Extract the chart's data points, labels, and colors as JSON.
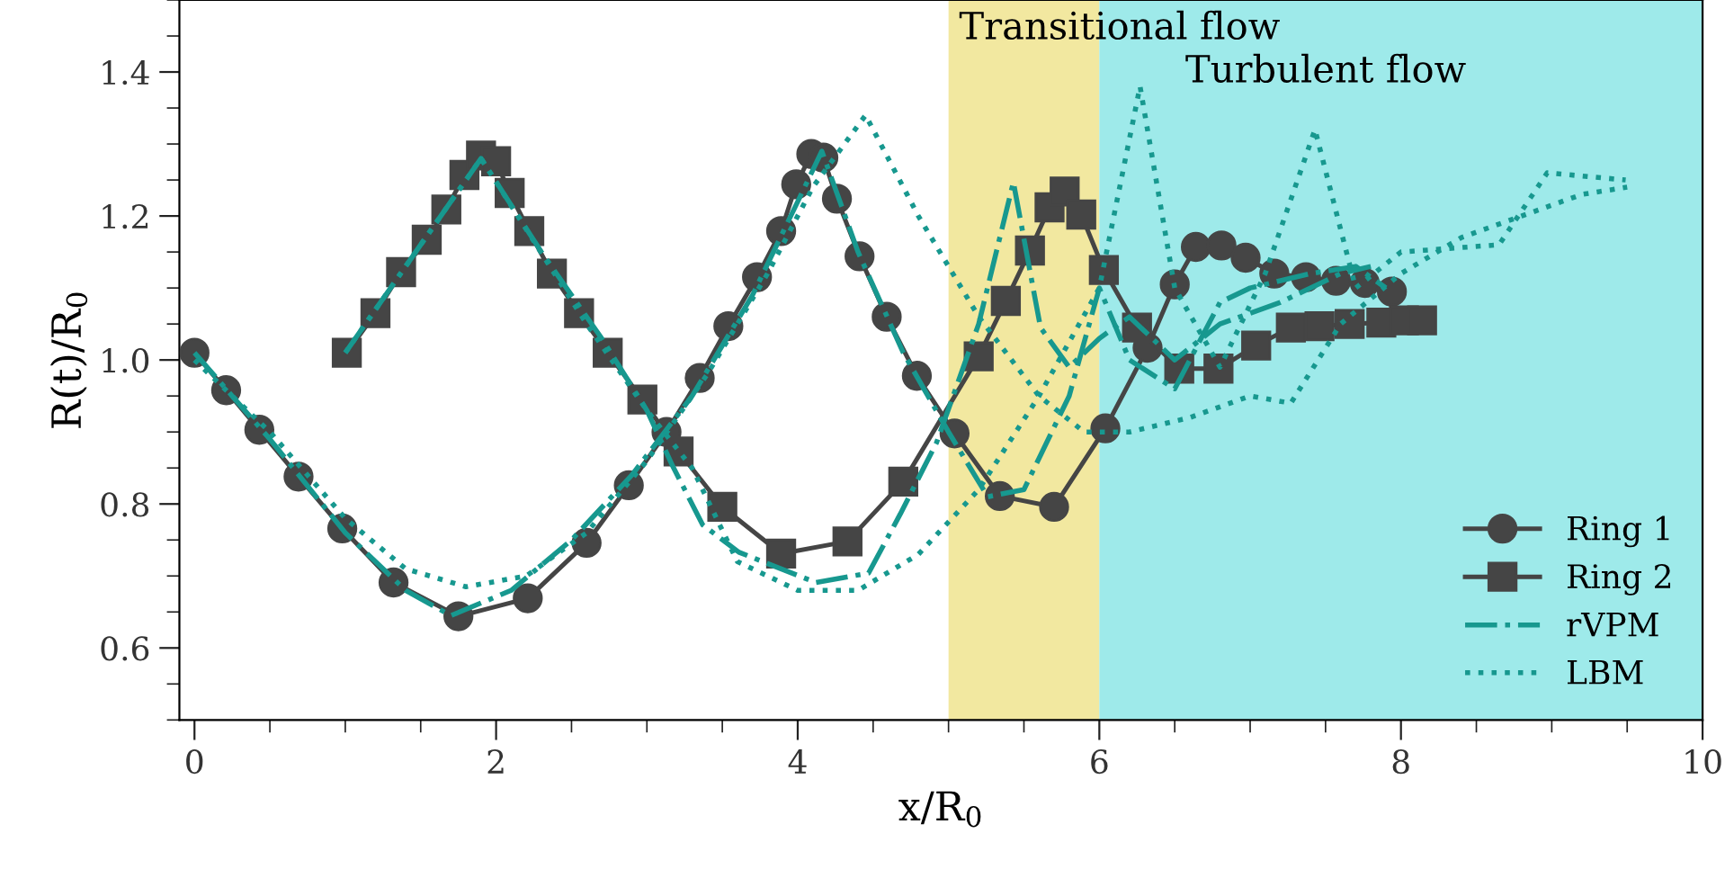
{
  "chart_data": {
    "type": "line",
    "xlabel": "x/R$_{0}$",
    "ylabel": "R(t)/R$_{0}$",
    "xlim": [
      -0.1,
      10
    ],
    "ylim": [
      0.5,
      1.5
    ],
    "xticks": [
      0,
      {
        "value": 0.5,
        "label": null
      },
      {
        "value": 1,
        "label": null
      },
      {
        "value": 1.5,
        "label": null
      },
      2,
      {
        "value": 2.5,
        "label": null
      },
      {
        "value": 3,
        "label": null
      },
      {
        "value": 3.5,
        "label": null
      },
      4,
      {
        "value": 4.5,
        "label": null
      },
      {
        "value": 5,
        "label": null
      },
      {
        "value": 5.5,
        "label": null
      },
      6,
      {
        "value": 6.5,
        "label": null
      },
      {
        "value": 7,
        "label": null
      },
      {
        "value": 7.5,
        "label": null
      },
      8,
      {
        "value": 8.5,
        "label": null
      },
      {
        "value": 9,
        "label": null
      },
      {
        "value": 9.5,
        "label": null
      },
      10
    ],
    "yticks": [
      {
        "value": 0.5,
        "label": null
      },
      {
        "value": 0.55,
        "label": null
      },
      0.6,
      {
        "value": 0.65,
        "label": null
      },
      {
        "value": 0.7,
        "label": null
      },
      {
        "value": 0.75,
        "label": null
      },
      0.8,
      {
        "value": 0.85,
        "label": null
      },
      {
        "value": 0.9,
        "label": null
      },
      {
        "value": 0.95,
        "label": null
      },
      {
        "value": 1.0,
        "label": "1.0"
      },
      {
        "value": 1.05,
        "label": null
      },
      {
        "value": 1.1,
        "label": null
      },
      {
        "value": 1.15,
        "label": null
      },
      1.2,
      {
        "value": 1.25,
        "label": null
      },
      {
        "value": 1.3,
        "label": null
      },
      {
        "value": 1.35,
        "label": null
      },
      1.4,
      {
        "value": 1.45,
        "label": null
      },
      {
        "value": 1.5,
        "label": null
      }
    ],
    "grid": false,
    "legend": "bottom right",
    "bands": [
      {
        "axis": "x",
        "from": 5,
        "to": 6,
        "label": "Transitional flow",
        "color": "#f2e8a0"
      },
      {
        "axis": "x",
        "from": 6,
        "to": 10,
        "label": "Turbulent flow",
        "color": "#9eeaea"
      }
    ],
    "series": [
      {
        "name": "Ring 1",
        "color": "#454545",
        "marker": "circle",
        "line_style": "solid",
        "x": [
          0,
          0.21,
          0.43,
          0.69,
          0.98,
          1.32,
          1.75,
          2.21,
          2.6,
          2.88,
          3.13,
          3.35,
          3.54,
          3.73,
          3.89,
          3.99,
          4.09,
          4.17,
          4.26,
          4.41,
          4.59,
          4.79,
          5.04,
          5.34,
          5.7,
          6.04,
          6.32,
          6.5,
          6.64,
          6.81,
          6.97,
          7.16,
          7.37,
          7.57,
          7.76,
          7.94
        ],
        "values": [
          1.01,
          0.958,
          0.903,
          0.838,
          0.766,
          0.691,
          0.644,
          0.669,
          0.746,
          0.826,
          0.9,
          0.975,
          1.047,
          1.115,
          1.179,
          1.244,
          1.286,
          1.281,
          1.224,
          1.144,
          1.06,
          0.978,
          0.898,
          0.811,
          0.796,
          0.905,
          1.017,
          1.105,
          1.157,
          1.159,
          1.142,
          1.12,
          1.115,
          1.11,
          1.107,
          1.095
        ]
      },
      {
        "name": "Ring 2",
        "color": "#454545",
        "marker": "square",
        "line_style": "solid",
        "x": [
          1.01,
          1.2,
          1.37,
          1.54,
          1.67,
          1.79,
          1.9,
          2.0,
          2.09,
          2.22,
          2.37,
          2.55,
          2.74,
          2.97,
          3.21,
          3.5,
          3.89,
          4.33,
          4.7,
          5.2,
          5.38,
          5.54,
          5.67,
          5.77,
          5.88,
          6.03,
          6.25,
          6.53,
          6.79,
          7.04,
          7.27,
          7.46,
          7.66,
          7.87,
          8.02,
          8.14
        ],
        "values": [
          1.01,
          1.065,
          1.122,
          1.167,
          1.209,
          1.257,
          1.284,
          1.276,
          1.232,
          1.179,
          1.12,
          1.065,
          1.01,
          0.945,
          0.873,
          0.796,
          0.731,
          0.748,
          0.831,
          1.005,
          1.082,
          1.152,
          1.212,
          1.234,
          1.202,
          1.125,
          1.045,
          0.988,
          0.988,
          1.02,
          1.045,
          1.047,
          1.05,
          1.052,
          1.055,
          1.055
        ]
      },
      {
        "name": "rVPM",
        "color": "#17988f",
        "marker": "none",
        "line_style": "dashdot",
        "x": [
          0,
          0.5,
          1.0,
          1.4,
          1.7,
          2.1,
          2.5,
          2.9,
          3.3,
          3.7,
          4.0,
          4.16,
          4.4,
          4.7,
          5.0,
          5.26,
          5.5,
          5.8,
          6.0,
          6.2,
          6.5,
          6.8,
          7.0,
          7.4,
          7.7,
          7.9
        ],
        "values": [
          1.01,
          0.89,
          0.76,
          0.68,
          0.645,
          0.68,
          0.75,
          0.84,
          0.95,
          1.09,
          1.22,
          1.29,
          1.15,
          1.01,
          0.9,
          0.81,
          0.82,
          0.95,
          1.1,
          1.0,
          0.96,
          1.08,
          1.1,
          1.12,
          1.13,
          1.1
        ]
      },
      {
        "color": "#17988f",
        "marker": "none",
        "line_style": "dashdot",
        "x": [
          1.0,
          1.9,
          2.3,
          2.7,
          3.0,
          3.17,
          3.37,
          3.61,
          4.12,
          4.47,
          4.68,
          4.92,
          5.2,
          5.43,
          5.61,
          5.8,
          6.0,
          6.2,
          6.5,
          6.8,
          7.2,
          7.6,
          7.8
        ],
        "values": [
          1.01,
          1.28,
          1.15,
          1.03,
          0.93,
          0.853,
          0.771,
          0.733,
          0.691,
          0.704,
          0.786,
          0.885,
          1.05,
          1.247,
          1.045,
          0.99,
          1.03,
          1.06,
          1.0,
          1.05,
          1.08,
          1.12,
          1.13
        ]
      },
      {
        "name": "LBM",
        "color": "#17988f",
        "marker": "none",
        "line_style": "dotted",
        "x": [
          0,
          0.5,
          1.0,
          1.4,
          1.8,
          2.2,
          2.6,
          3.0,
          3.4,
          3.8,
          4.1,
          4.45,
          4.8,
          5.2,
          5.6,
          5.9,
          6.2,
          6.6,
          7.0,
          7.27,
          7.6,
          8.0,
          8.4,
          8.8,
          9.2,
          9.5
        ],
        "values": [
          1.0,
          0.9,
          0.78,
          0.71,
          0.685,
          0.7,
          0.76,
          0.86,
          0.98,
          1.12,
          1.24,
          1.34,
          1.2,
          1.06,
          0.95,
          0.9,
          0.9,
          0.92,
          0.95,
          0.94,
          1.05,
          1.12,
          1.17,
          1.2,
          1.23,
          1.24
        ]
      },
      {
        "color": "#17988f",
        "marker": "none",
        "line_style": "dotted",
        "x": [
          1.0,
          1.9,
          2.6,
          3.0,
          3.3,
          3.6,
          4.0,
          4.4,
          4.8,
          5.2,
          5.6,
          6.0,
          6.27,
          6.5,
          6.8,
          7.1,
          7.43,
          7.7,
          8.0,
          8.65,
          8.97,
          9.49
        ],
        "values": [
          1.01,
          1.28,
          1.05,
          0.93,
          0.85,
          0.72,
          0.68,
          0.68,
          0.73,
          0.82,
          0.95,
          1.1,
          1.38,
          1.1,
          0.99,
          1.12,
          1.32,
          1.1,
          1.15,
          1.16,
          1.26,
          1.25
        ]
      }
    ]
  }
}
